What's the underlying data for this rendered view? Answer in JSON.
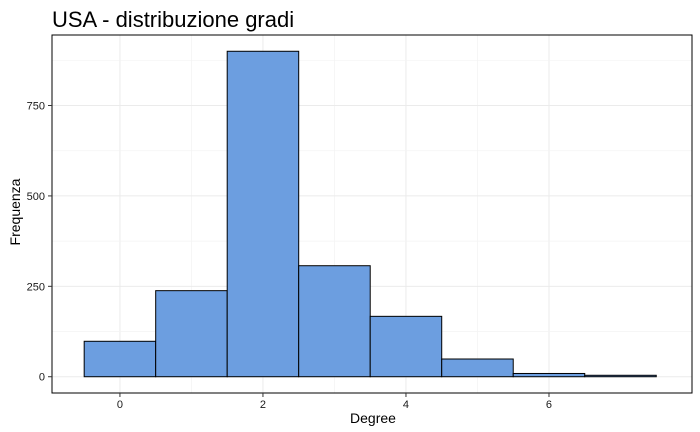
{
  "chart_data": {
    "type": "bar",
    "title": "USA - distribuzione gradi",
    "xlabel": "Degree",
    "ylabel": "Frequenza",
    "bins": [
      {
        "x": 0,
        "value": 98
      },
      {
        "x": 1,
        "value": 238
      },
      {
        "x": 2,
        "value": 900
      },
      {
        "x": 3,
        "value": 307
      },
      {
        "x": 4,
        "value": 167
      },
      {
        "x": 5,
        "value": 49
      },
      {
        "x": 6,
        "value": 9
      },
      {
        "x": 7,
        "value": 4
      }
    ],
    "bin_width": 1,
    "xlim": [
      -0.95,
      8.0
    ],
    "ylim": [
      -45,
      945
    ],
    "x_ticks": [
      0,
      2,
      4,
      6
    ],
    "x_tick_labels": [
      "0",
      "2",
      "4",
      "6"
    ],
    "y_ticks": [
      0,
      250,
      500,
      750
    ],
    "y_tick_labels": [
      "0",
      "250",
      "500",
      "750"
    ],
    "grid": true,
    "bar_color": "#6c9ee0",
    "bar_border_color": "#000000"
  }
}
